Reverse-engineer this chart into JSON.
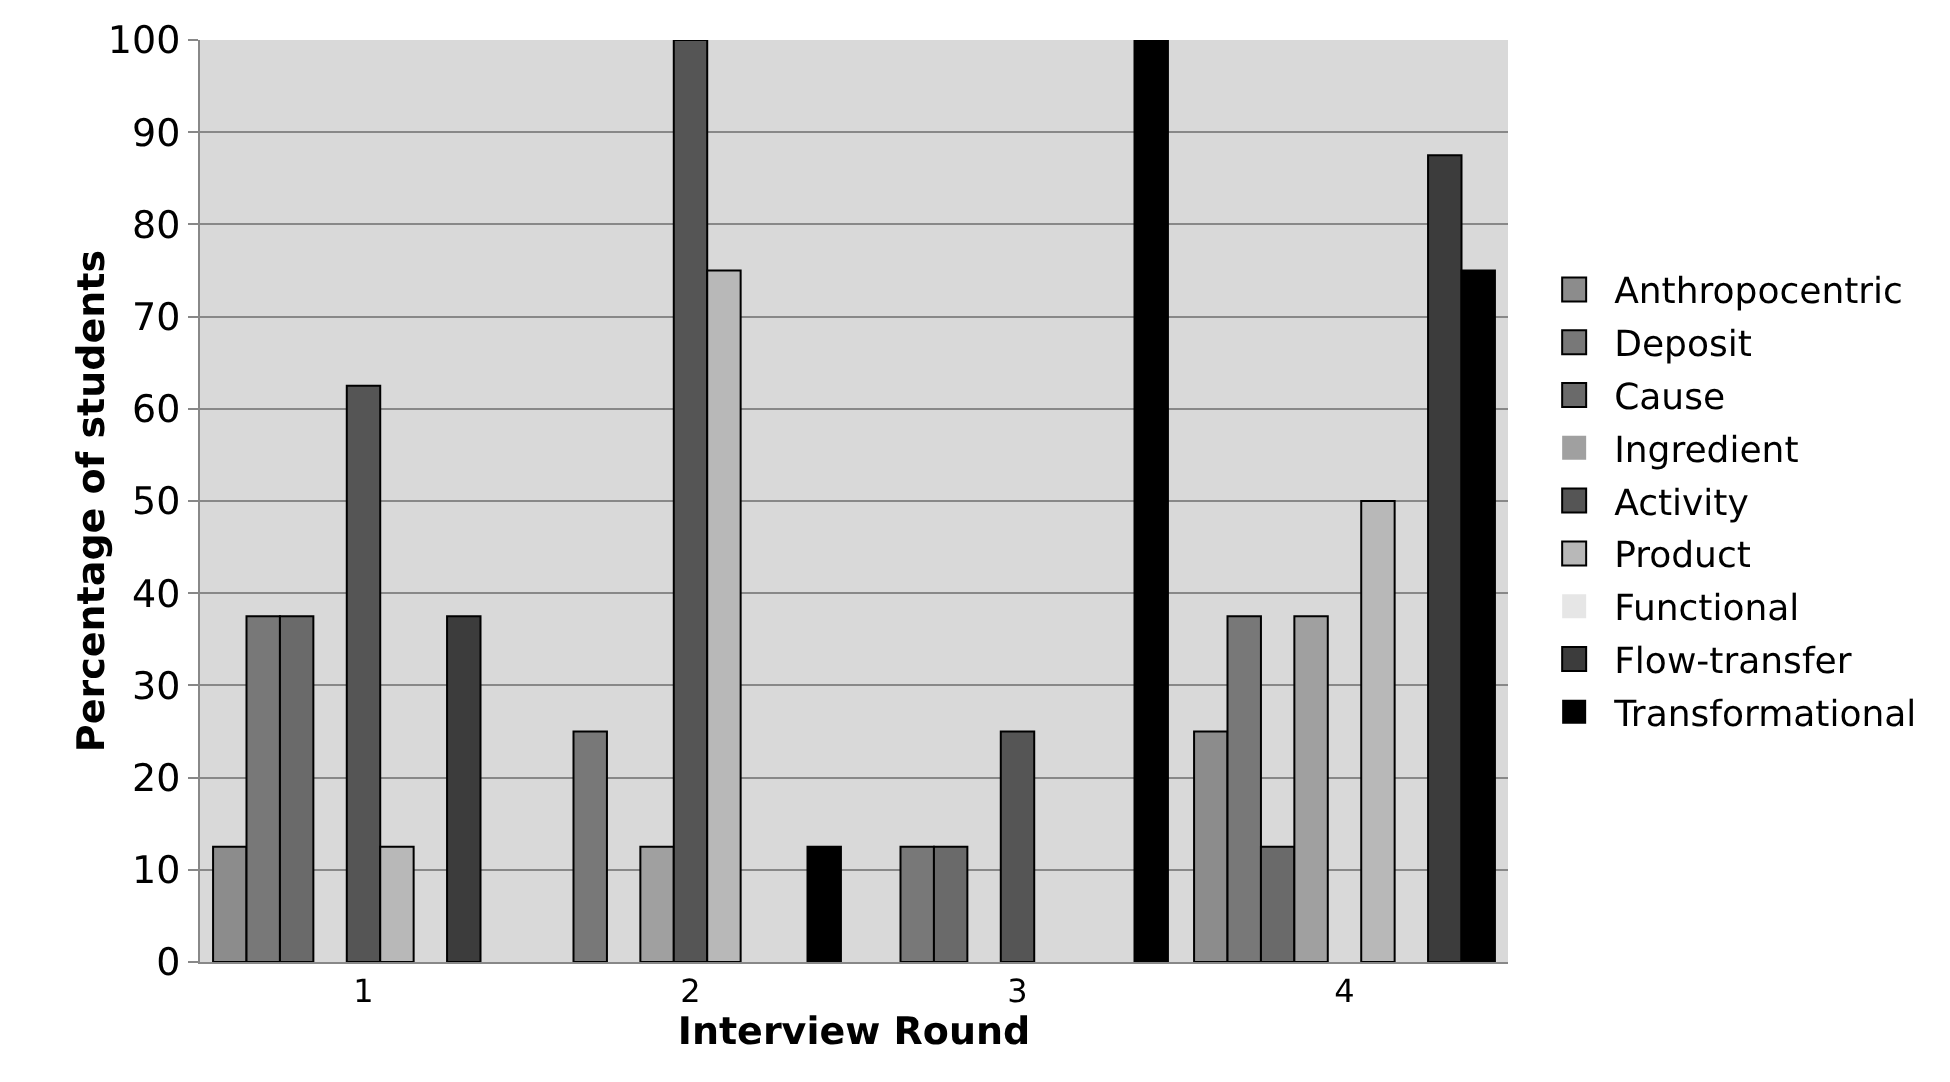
{
  "chart_data": {
    "type": "bar",
    "xlabel": "Interview Round",
    "ylabel": "Percentage of students",
    "categories": [
      "1",
      "2",
      "3",
      "4"
    ],
    "ylim": [
      0,
      100
    ],
    "yticks": [
      0,
      10,
      20,
      30,
      40,
      50,
      60,
      70,
      80,
      90,
      100
    ],
    "grid": "y",
    "legend": "right",
    "series": [
      {
        "name": "Anthropocentric",
        "color": "#8c8c8c",
        "values": [
          12.5,
          0,
          0,
          25
        ]
      },
      {
        "name": "Deposit",
        "color": "#787878",
        "values": [
          37.5,
          25,
          12.5,
          37.5
        ]
      },
      {
        "name": "Cause",
        "color": "#6a6a6a",
        "values": [
          37.5,
          0,
          12.5,
          12.5
        ]
      },
      {
        "name": "Ingredient",
        "color": "#a0a0a0",
        "values": [
          0,
          12.5,
          0,
          37.5
        ]
      },
      {
        "name": "Activity",
        "color": "#555555",
        "values": [
          62.5,
          100,
          25,
          0
        ]
      },
      {
        "name": "Product",
        "color": "#b8b8b8",
        "values": [
          12.5,
          75,
          0,
          50
        ]
      },
      {
        "name": "Functional",
        "color": "#e6e6e6",
        "values": [
          0,
          0,
          0,
          0
        ]
      },
      {
        "name": "Flow-transfer",
        "color": "#3c3c3c",
        "values": [
          37.5,
          0,
          0,
          87.5
        ]
      },
      {
        "name": "Transformational",
        "color": "#000000",
        "values": [
          0,
          12.5,
          100,
          75
        ]
      }
    ]
  }
}
